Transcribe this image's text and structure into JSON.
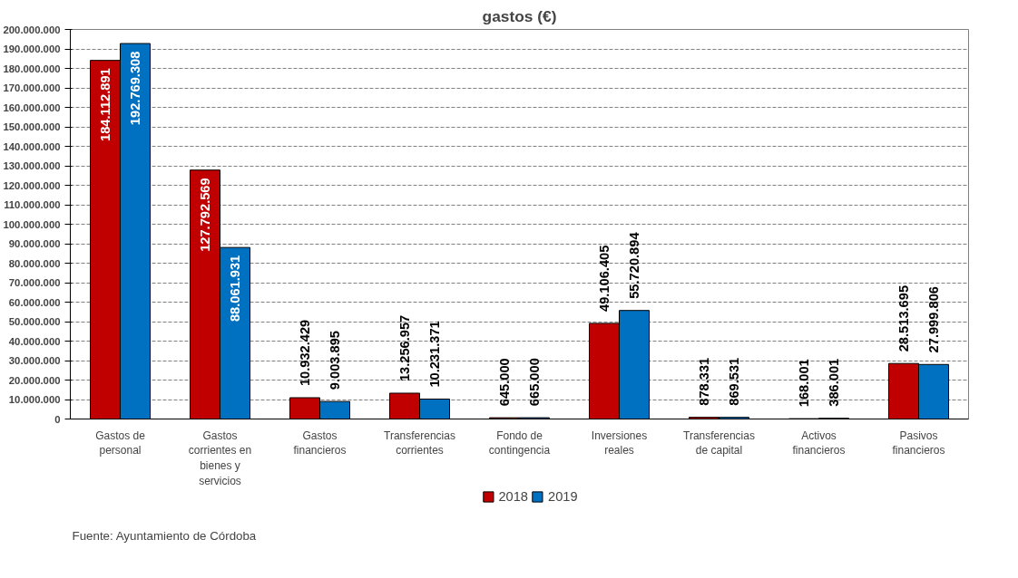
{
  "chart_data": {
    "type": "bar",
    "title": "gastos (€)",
    "categories": [
      "Gastos de personal",
      "Gastos corrientes en bienes y servicios",
      "Gastos financieros",
      "Transferencias corrientes",
      "Fondo de contingencia",
      "Inversiones reales",
      "Transferencias de capital",
      "Activos financieros",
      "Pasivos financieros"
    ],
    "series": [
      {
        "name": "2018",
        "color": "#c00000",
        "values": [
          184112891,
          127792569,
          10932429,
          13256957,
          645000,
          49106405,
          878331,
          168001,
          28513695
        ],
        "value_labels": [
          "184.112.891",
          "127.792.569",
          "10.932.429",
          "13.256.957",
          "645.000",
          "49.106.405",
          "878.331",
          "168.001",
          "28.513.695"
        ]
      },
      {
        "name": "2019",
        "color": "#0070c0",
        "values": [
          192769308,
          88061931,
          9003895,
          10231371,
          665000,
          55720894,
          869531,
          386001,
          27999806
        ],
        "value_labels": [
          "192.769.308",
          "88.061.931",
          "9.003.895",
          "10.231.371",
          "665.000",
          "55.720.894",
          "869.531",
          "386.001",
          "27.999.806"
        ]
      }
    ],
    "ylim": [
      0,
      200000000
    ],
    "yticks": [
      0,
      {
        "value": 10000000,
        "label": "10.000.000"
      },
      {
        "value": 20000000,
        "label": "20.000.000"
      },
      {
        "value": 30000000,
        "label": "30.000.000"
      },
      {
        "value": 40000000,
        "label": "40.000.000"
      },
      {
        "value": 50000000,
        "label": "50.000.000"
      },
      {
        "value": 60000000,
        "label": "60.000.000"
      },
      {
        "value": 70000000,
        "label": "70.000.000"
      },
      {
        "value": 80000000,
        "label": "80.000.000"
      },
      {
        "value": 90000000,
        "label": "90.000.000"
      },
      {
        "value": 100000000,
        "label": "100.000.000"
      },
      {
        "value": 110000000,
        "label": "110.000.000"
      },
      {
        "value": 120000000,
        "label": "120.000.000"
      },
      {
        "value": 130000000,
        "label": "130.000.000"
      },
      {
        "value": 140000000,
        "label": "140.000.000"
      },
      {
        "value": 150000000,
        "label": "150.000.000"
      },
      {
        "value": 160000000,
        "label": "160.000.000"
      },
      {
        "value": 170000000,
        "label": "170.000.000"
      },
      {
        "value": 180000000,
        "label": "180.000.000"
      },
      {
        "value": 190000000,
        "label": "190.000.000"
      },
      {
        "value": 200000000,
        "label": "200.000.000"
      }
    ],
    "grid": "y",
    "legend": "bottom",
    "annotations": [
      "Fuente: Ayuntamiento de Córdoba"
    ]
  }
}
